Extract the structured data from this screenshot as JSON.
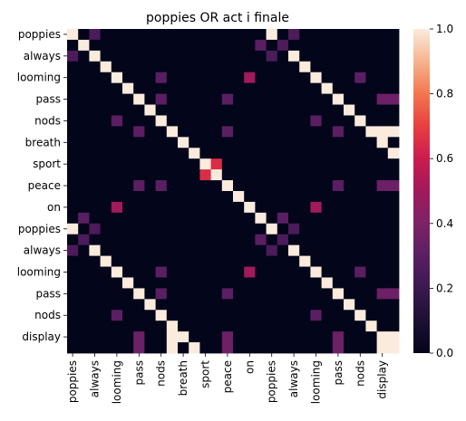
{
  "chart_data": {
    "type": "heatmap",
    "title": "poppies OR act i finale",
    "row_labels": [
      "poppies",
      "",
      "always",
      "",
      "looming",
      "",
      "pass",
      "",
      "nods",
      "",
      "breath",
      "",
      "sport",
      "",
      "peace",
      "",
      "on",
      "",
      "poppies",
      "",
      "always",
      "",
      "looming",
      "",
      "pass",
      "",
      "nods",
      "",
      "display",
      ""
    ],
    "col_labels": [
      "poppies",
      "",
      "always",
      "",
      "looming",
      "",
      "pass",
      "",
      "nods",
      "",
      "breath",
      "",
      "sport",
      "",
      "peace",
      "",
      "on",
      "",
      "poppies",
      "",
      "always",
      "",
      "looming",
      "",
      "pass",
      "",
      "nods",
      "",
      "display",
      ""
    ],
    "colorbar": {
      "range": [
        0.0,
        1.0
      ],
      "ticks": [
        "0.0",
        "0.2",
        "0.4",
        "0.6",
        "0.8",
        "1.0"
      ],
      "colormap": "rocket"
    },
    "cells": [
      {
        "r": 0,
        "c": 0,
        "v": 1.0
      },
      {
        "r": 0,
        "c": 18,
        "v": 1.0
      },
      {
        "r": 0,
        "c": 2,
        "v": 0.25
      },
      {
        "r": 0,
        "c": 20,
        "v": 0.25
      },
      {
        "r": 2,
        "c": 0,
        "v": 0.25
      },
      {
        "r": 2,
        "c": 18,
        "v": 0.25
      },
      {
        "r": 18,
        "c": 0,
        "v": 1.0
      },
      {
        "r": 18,
        "c": 18,
        "v": 1.0
      },
      {
        "r": 18,
        "c": 2,
        "v": 0.25
      },
      {
        "r": 18,
        "c": 20,
        "v": 0.25
      },
      {
        "r": 20,
        "c": 0,
        "v": 0.25
      },
      {
        "r": 20,
        "c": 18,
        "v": 0.25
      },
      {
        "r": 1,
        "c": 17,
        "v": 0.3
      },
      {
        "r": 19,
        "c": 17,
        "v": 0.3
      },
      {
        "r": 1,
        "c": 19,
        "v": 0.25
      },
      {
        "r": 19,
        "c": 19,
        "v": 0.25
      },
      {
        "r": 17,
        "c": 1,
        "v": 0.3
      },
      {
        "r": 17,
        "c": 19,
        "v": 0.3
      },
      {
        "r": 19,
        "c": 1,
        "v": 0.25
      },
      {
        "r": 4,
        "c": 16,
        "v": 0.5
      },
      {
        "r": 22,
        "c": 16,
        "v": 0.5
      },
      {
        "r": 16,
        "c": 4,
        "v": 0.5
      },
      {
        "r": 16,
        "c": 22,
        "v": 0.5
      },
      {
        "r": 4,
        "c": 8,
        "v": 0.3
      },
      {
        "r": 4,
        "c": 26,
        "v": 0.3
      },
      {
        "r": 22,
        "c": 8,
        "v": 0.3
      },
      {
        "r": 22,
        "c": 26,
        "v": 0.3
      },
      {
        "r": 8,
        "c": 4,
        "v": 0.3
      },
      {
        "r": 8,
        "c": 22,
        "v": 0.3
      },
      {
        "r": 26,
        "c": 4,
        "v": 0.3
      },
      {
        "r": 26,
        "c": 22,
        "v": 0.3
      },
      {
        "r": 6,
        "c": 8,
        "v": 0.3
      },
      {
        "r": 6,
        "c": 14,
        "v": 0.3
      },
      {
        "r": 6,
        "c": 28,
        "v": 0.35
      },
      {
        "r": 6,
        "c": 29,
        "v": 0.35
      },
      {
        "r": 9,
        "c": 6,
        "v": 0.3
      },
      {
        "r": 9,
        "c": 14,
        "v": 0.3
      },
      {
        "r": 9,
        "c": 24,
        "v": 0.3
      },
      {
        "r": 9,
        "c": 28,
        "v": 1.0
      },
      {
        "r": 9,
        "c": 29,
        "v": 1.0
      },
      {
        "r": 14,
        "c": 6,
        "v": 0.3
      },
      {
        "r": 14,
        "c": 8,
        "v": 0.3
      },
      {
        "r": 14,
        "c": 24,
        "v": 0.3
      },
      {
        "r": 14,
        "c": 28,
        "v": 0.35
      },
      {
        "r": 14,
        "c": 29,
        "v": 0.35
      },
      {
        "r": 24,
        "c": 8,
        "v": 0.3
      },
      {
        "r": 24,
        "c": 14,
        "v": 0.3
      },
      {
        "r": 24,
        "c": 28,
        "v": 0.35
      },
      {
        "r": 24,
        "c": 29,
        "v": 0.35
      },
      {
        "r": 12,
        "c": 13,
        "v": 0.65
      },
      {
        "r": 13,
        "c": 12,
        "v": 0.65
      },
      {
        "r": 28,
        "c": 6,
        "v": 0.35
      },
      {
        "r": 29,
        "c": 6,
        "v": 0.35
      },
      {
        "r": 28,
        "c": 9,
        "v": 1.0
      },
      {
        "r": 29,
        "c": 9,
        "v": 1.0
      },
      {
        "r": 28,
        "c": 14,
        "v": 0.35
      },
      {
        "r": 29,
        "c": 14,
        "v": 0.35
      },
      {
        "r": 28,
        "c": 24,
        "v": 0.35
      },
      {
        "r": 29,
        "c": 24,
        "v": 0.35
      },
      {
        "r": 28,
        "c": 28,
        "v": 1.0
      },
      {
        "r": 28,
        "c": 29,
        "v": 1.0
      },
      {
        "r": 29,
        "c": 28,
        "v": 1.0
      },
      {
        "r": 29,
        "c": 29,
        "v": 1.0
      }
    ],
    "diagonal_value": 1.0,
    "offset_diagonal_value": 1.0,
    "offset_diagonal_shift": 18
  }
}
